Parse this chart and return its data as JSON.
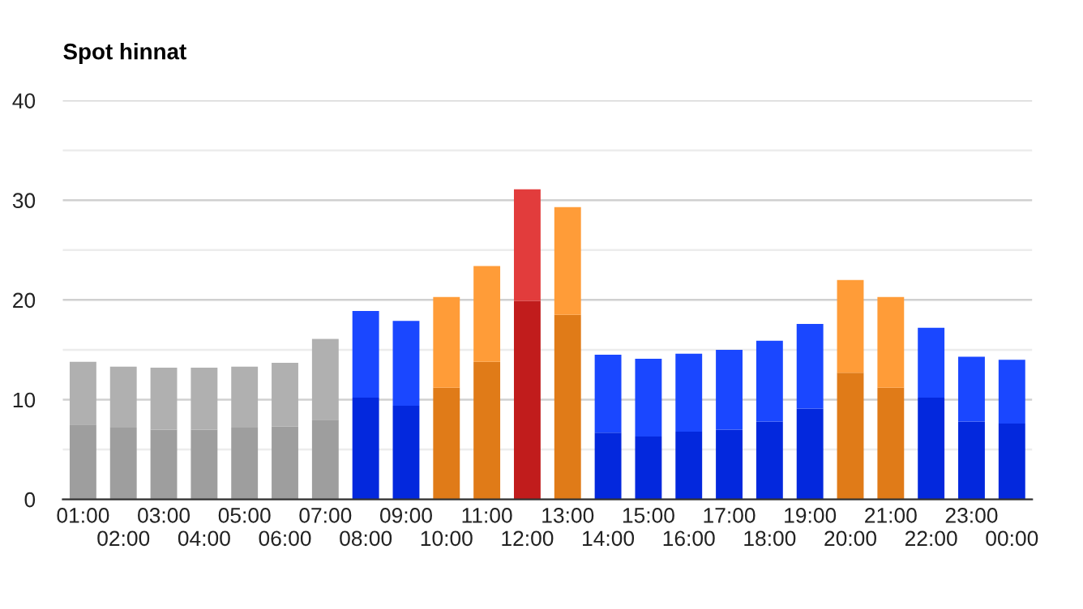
{
  "chart_data": {
    "type": "bar",
    "title": "Spot hinnat",
    "stacked": true,
    "categories": [
      "01:00",
      "02:00",
      "03:00",
      "04:00",
      "05:00",
      "06:00",
      "07:00",
      "08:00",
      "09:00",
      "10:00",
      "11:00",
      "12:00",
      "13:00",
      "14:00",
      "15:00",
      "16:00",
      "17:00",
      "18:00",
      "19:00",
      "20:00",
      "21:00",
      "22:00",
      "23:00",
      "00:00"
    ],
    "series": [
      {
        "values": [
          7.5,
          7.2,
          7.0,
          7.0,
          7.2,
          7.3,
          8.0,
          10.2,
          9.4,
          11.2,
          13.8,
          19.9,
          18.5,
          6.7,
          6.3,
          6.8,
          7.0,
          7.8,
          9.1,
          12.7,
          11.2,
          10.2,
          7.8,
          7.6
        ],
        "colors": [
          "#9e9e9e",
          "#9e9e9e",
          "#9e9e9e",
          "#9e9e9e",
          "#9e9e9e",
          "#9e9e9e",
          "#9e9e9e",
          "#0328dd",
          "#0328dd",
          "#e07b18",
          "#e07b18",
          "#c11c1c",
          "#e07b18",
          "#0328dd",
          "#0328dd",
          "#0328dd",
          "#0328dd",
          "#0328dd",
          "#0328dd",
          "#e07b18",
          "#e07b18",
          "#0328dd",
          "#0328dd",
          "#0328dd"
        ]
      },
      {
        "values": [
          6.3,
          6.1,
          6.2,
          6.2,
          6.1,
          6.4,
          8.1,
          8.7,
          8.5,
          9.1,
          9.6,
          11.2,
          10.8,
          7.8,
          7.8,
          7.8,
          8.0,
          8.1,
          8.5,
          9.3,
          9.1,
          7.0,
          6.5,
          6.4
        ],
        "colors": [
          "#b0b0b0",
          "#b0b0b0",
          "#b0b0b0",
          "#b0b0b0",
          "#b0b0b0",
          "#b0b0b0",
          "#b0b0b0",
          "#1a47ff",
          "#1a47ff",
          "#ff9c38",
          "#ff9c38",
          "#e23c3c",
          "#ff9c38",
          "#1a47ff",
          "#1a47ff",
          "#1a47ff",
          "#1a47ff",
          "#1a47ff",
          "#1a47ff",
          "#ff9c38",
          "#ff9c38",
          "#1a47ff",
          "#1a47ff",
          "#1a47ff"
        ]
      }
    ],
    "ylim": [
      0,
      40
    ],
    "yticks": [
      0,
      {
        "value": 5,
        "label": null
      },
      10,
      {
        "value": 15,
        "label": null
      },
      20,
      {
        "value": 25,
        "label": null
      },
      30,
      {
        "value": 35,
        "label": null
      },
      40
    ],
    "grid": "y",
    "legend": false
  }
}
